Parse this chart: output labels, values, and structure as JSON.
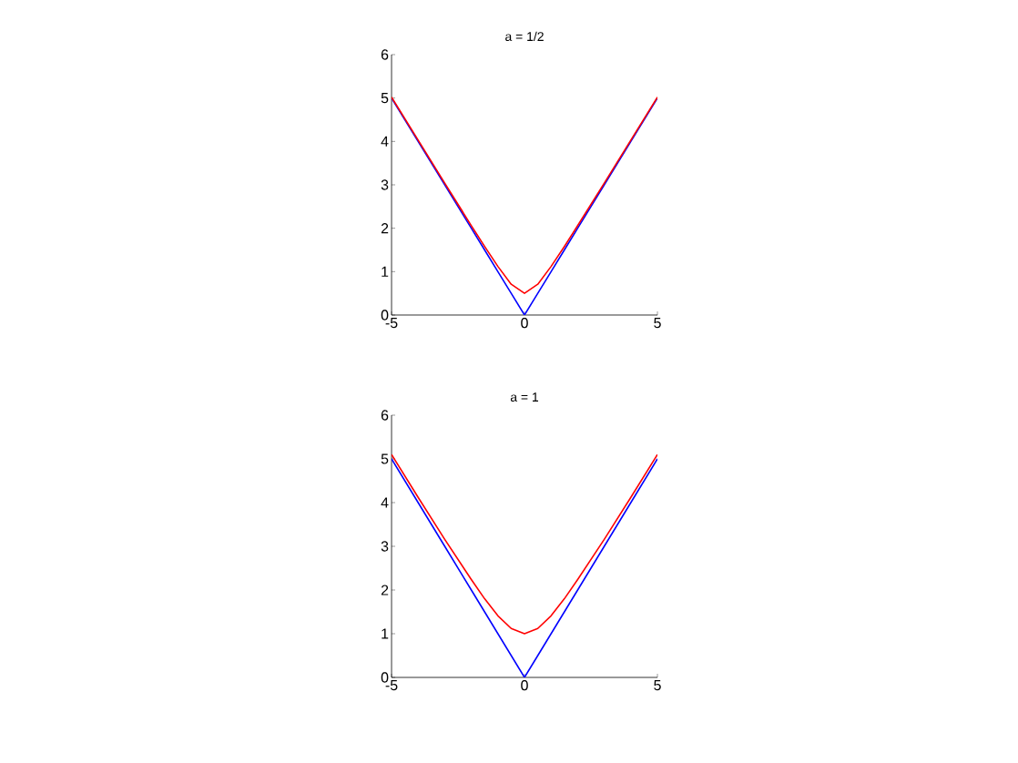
{
  "chart_data": [
    {
      "type": "line",
      "title": "a = 1/2",
      "x": [
        -5,
        -4,
        -3,
        -2,
        -1.5,
        -1,
        -0.5,
        0,
        0.5,
        1,
        1.5,
        2,
        3,
        4,
        5
      ],
      "series": [
        {
          "color": "#0000ff",
          "values": [
            5,
            4,
            3,
            2,
            1.5,
            1,
            0.5,
            0,
            0.5,
            1,
            1.5,
            2,
            3,
            4,
            5
          ]
        },
        {
          "color": "#ff0000",
          "values": [
            5.02,
            4.03,
            3.04,
            2.06,
            1.58,
            1.12,
            0.71,
            0.5,
            0.71,
            1.12,
            1.58,
            2.06,
            3.04,
            4.03,
            5.02
          ]
        }
      ],
      "xlim": [
        -5,
        5
      ],
      "ylim": [
        0,
        6
      ],
      "xticks": [
        -5,
        0,
        5
      ],
      "yticks": [
        0,
        1,
        2,
        3,
        4,
        5,
        6
      ]
    },
    {
      "type": "line",
      "title": "a = 1",
      "x": [
        -5,
        -4,
        -3,
        -2,
        -1.5,
        -1,
        -0.5,
        0,
        0.5,
        1,
        1.5,
        2,
        3,
        4,
        5
      ],
      "series": [
        {
          "color": "#0000ff",
          "values": [
            5,
            4,
            3,
            2,
            1.5,
            1,
            0.5,
            0,
            0.5,
            1,
            1.5,
            2,
            3,
            4,
            5
          ]
        },
        {
          "color": "#ff0000",
          "values": [
            5.1,
            4.12,
            3.16,
            2.24,
            1.8,
            1.41,
            1.12,
            1,
            1.12,
            1.41,
            1.8,
            2.24,
            3.16,
            4.12,
            5.1
          ]
        }
      ],
      "xlim": [
        -5,
        5
      ],
      "ylim": [
        0,
        6
      ],
      "xticks": [
        -5,
        0,
        5
      ],
      "yticks": [
        0,
        1,
        2,
        3,
        4,
        5,
        6
      ]
    }
  ]
}
